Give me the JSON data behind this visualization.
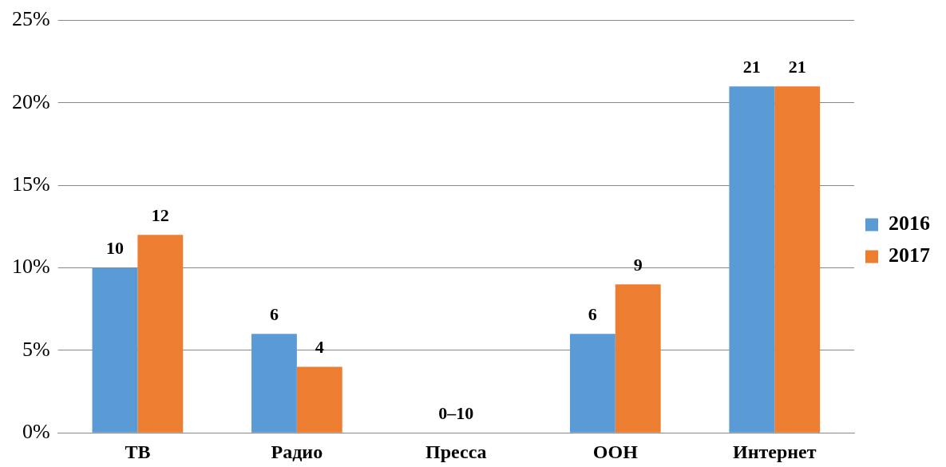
{
  "chart_data": {
    "type": "bar",
    "categories": [
      "ТВ",
      "Радио",
      "Пресса",
      "ООН",
      "Интернет"
    ],
    "series": [
      {
        "name": "2016",
        "color": "#5b9bd5",
        "values": [
          10,
          6,
          null,
          6,
          21
        ]
      },
      {
        "name": "2017",
        "color": "#ed7d31",
        "values": [
          12,
          4,
          null,
          9,
          21
        ]
      }
    ],
    "ylim": [
      0,
      25
    ],
    "yticks": [
      {
        "value": 0,
        "label": "0%"
      },
      {
        "value": 5,
        "label": "5%"
      },
      {
        "value": 10,
        "label": "10%"
      },
      {
        "value": 15,
        "label": "15%"
      },
      {
        "value": 20,
        "label": "20%"
      },
      {
        "value": 25,
        "label": "25%"
      }
    ],
    "grid": "y",
    "legend": "right",
    "data_labels": true,
    "annotations": [
      "0–10"
    ]
  }
}
